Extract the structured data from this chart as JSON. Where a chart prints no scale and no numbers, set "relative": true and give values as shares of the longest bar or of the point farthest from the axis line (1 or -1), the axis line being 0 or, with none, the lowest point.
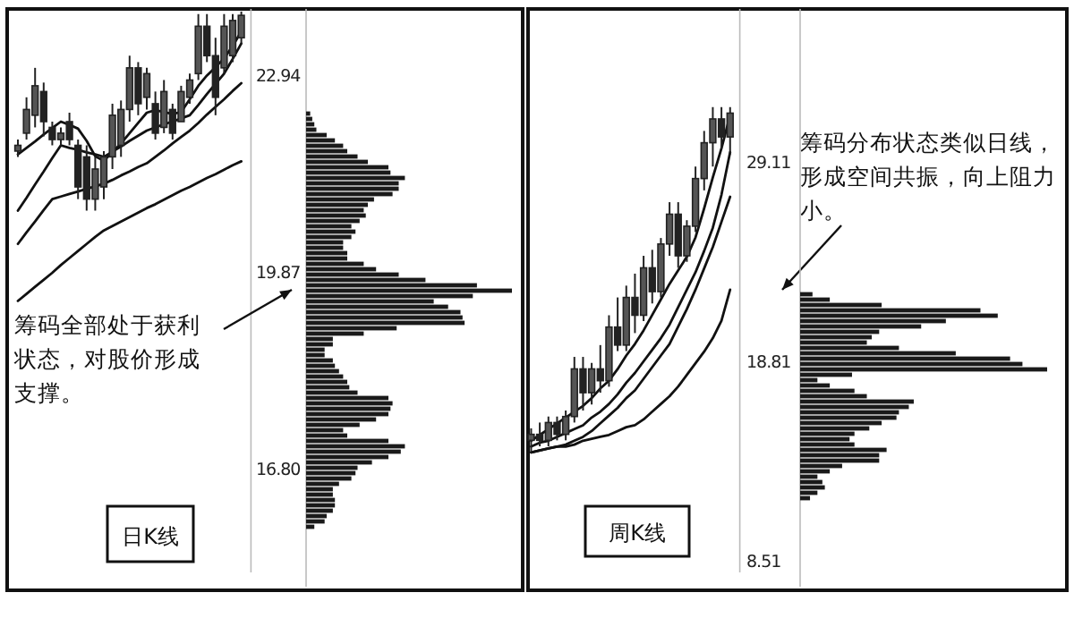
{
  "chart_data": [
    {
      "type": "candlestick",
      "categories": [
        null,
        null,
        null,
        null,
        null,
        null,
        null,
        null,
        null,
        null,
        null,
        null,
        null,
        null,
        null,
        null,
        null,
        null,
        null,
        null,
        null,
        null,
        null,
        null,
        null,
        null,
        null
      ],
      "ohlc": [
        [
          21.78,
          21.96,
          21.69,
          21.87
        ],
        [
          22.06,
          22.62,
          21.96,
          22.43
        ],
        [
          22.34,
          23.08,
          22.15,
          22.8
        ],
        [
          22.71,
          22.85,
          22.01,
          22.24
        ],
        [
          22.15,
          22.24,
          21.87,
          21.96
        ],
        [
          21.96,
          22.15,
          21.87,
          22.06
        ],
        [
          22.24,
          22.38,
          21.87,
          21.96
        ],
        [
          21.87,
          21.96,
          21.03,
          21.22
        ],
        [
          21.69,
          21.87,
          20.85,
          21.03
        ],
        [
          21.03,
          21.69,
          20.85,
          21.5
        ],
        [
          21.22,
          21.78,
          21.03,
          21.69
        ],
        [
          21.69,
          22.52,
          21.5,
          22.34
        ],
        [
          21.87,
          22.57,
          21.69,
          22.43
        ],
        [
          22.43,
          23.27,
          22.24,
          23.08
        ],
        [
          23.08,
          23.17,
          22.34,
          22.52
        ],
        [
          22.62,
          23.08,
          22.43,
          22.99
        ],
        [
          22.52,
          22.71,
          21.96,
          22.06
        ],
        [
          22.15,
          22.89,
          22.06,
          22.71
        ],
        [
          22.43,
          22.52,
          21.96,
          22.06
        ],
        [
          22.24,
          22.8,
          22.24,
          22.71
        ],
        [
          22.62,
          22.99,
          22.52,
          22.89
        ],
        [
          22.99,
          23.92,
          22.89,
          23.73
        ],
        [
          23.73,
          23.92,
          23.17,
          23.27
        ],
        [
          23.27,
          23.55,
          22.34,
          22.62
        ],
        [
          23.08,
          23.92,
          22.99,
          23.73
        ],
        [
          23.27,
          23.92,
          23.17,
          23.82
        ],
        [
          23.55,
          23.96,
          23.45,
          23.9
        ]
      ],
      "series": [
        {
          "type": "line",
          "color": "#111111",
          "values": [
            21.73,
            21.83,
            21.93,
            22.04,
            22.14,
            22.24,
            22.19,
            22.13,
            21.94,
            21.7,
            21.63,
            21.76,
            21.9,
            22.06,
            22.22,
            22.38,
            22.42,
            22.39,
            22.36,
            22.39,
            22.59,
            22.8,
            22.96,
            23.09,
            23.23,
            23.42,
            23.65
          ]
        },
        {
          "type": "line",
          "color": "#111111",
          "values": [
            20.85,
            21.05,
            21.26,
            21.46,
            21.67,
            21.87,
            21.83,
            21.8,
            21.76,
            21.73,
            21.69,
            21.77,
            21.85,
            21.94,
            22.02,
            22.1,
            22.15,
            22.2,
            22.24,
            22.29,
            22.34,
            22.5,
            22.67,
            22.83,
            22.99,
            23.22,
            23.46
          ]
        },
        {
          "type": "line",
          "color": "#111111",
          "values": [
            20.33,
            20.51,
            20.68,
            20.86,
            21.03,
            21.07,
            21.11,
            21.15,
            21.19,
            21.23,
            21.27,
            21.33,
            21.4,
            21.46,
            21.53,
            21.59,
            21.69,
            21.79,
            21.9,
            22.0,
            22.1,
            22.22,
            22.35,
            22.47,
            22.59,
            22.72,
            22.84
          ]
        },
        {
          "type": "line",
          "color": "#111111",
          "values": [
            19.44,
            19.55,
            19.66,
            19.77,
            19.88,
            20.0,
            20.11,
            20.22,
            20.33,
            20.44,
            20.54,
            20.61,
            20.68,
            20.75,
            20.82,
            20.89,
            20.95,
            21.02,
            21.09,
            21.16,
            21.22,
            21.29,
            21.36,
            21.42,
            21.49,
            21.56,
            21.62
          ]
        }
      ],
      "ylim": [
        15.2,
        24.0
      ],
      "yticks": [
        22.94,
        19.87,
        {
          "value": 16.8,
          "label": "16.80"
        }
      ],
      "tick_labels": "y",
      "annotations": [
        "筹码全部处于获利状态，对股价形成支撑。",
        "日K线"
      ]
    },
    {
      "type": "bar",
      "orientation": "horizontal",
      "relative": true,
      "tick_labels": false,
      "color": "#1a1a1a",
      "categories": [
        null,
        null,
        null,
        null,
        null,
        null,
        null,
        null,
        null,
        null,
        null,
        null,
        null,
        null,
        null,
        null,
        null,
        null,
        null,
        null,
        null,
        null,
        null,
        null,
        null,
        null,
        null,
        null,
        null,
        null,
        null,
        null,
        null,
        null,
        null,
        null,
        null,
        null,
        null,
        null,
        null,
        null,
        null,
        null,
        null,
        null,
        null,
        null,
        null,
        null,
        null,
        null,
        null,
        null,
        null,
        null,
        null,
        null,
        null,
        null,
        null,
        null,
        null,
        null,
        null,
        null,
        null,
        null,
        null,
        null,
        null,
        null,
        null,
        null,
        null,
        null,
        null,
        null
      ],
      "values": [
        0.02,
        0.03,
        0.04,
        0.05,
        0.1,
        0.14,
        0.18,
        0.2,
        0.25,
        0.3,
        0.4,
        0.41,
        0.48,
        0.45,
        0.45,
        0.42,
        0.33,
        0.3,
        0.28,
        0.29,
        0.26,
        0.22,
        0.24,
        0.22,
        0.18,
        0.18,
        0.2,
        0.2,
        0.28,
        0.34,
        0.45,
        0.58,
        0.83,
        1,
        0.81,
        0.62,
        0.69,
        0.75,
        0.76,
        0.77,
        0.44,
        0.28,
        0.13,
        0.13,
        0.09,
        0.09,
        0.13,
        0.14,
        0.16,
        0.18,
        0.2,
        0.21,
        0.25,
        0.4,
        0.42,
        0.41,
        0.4,
        0.34,
        0.26,
        0.18,
        0.2,
        0.4,
        0.48,
        0.46,
        0.4,
        0.32,
        0.25,
        0.24,
        0.22,
        0.16,
        0.13,
        0.13,
        0.14,
        0.14,
        0.13,
        0.1,
        0.09,
        0.04
      ]
    },
    {
      "type": "candlestick",
      "categories": [
        null,
        null,
        null,
        null,
        null,
        null,
        null,
        null,
        null,
        null,
        null,
        null,
        null,
        null,
        null,
        null,
        null,
        null,
        null,
        null,
        null,
        null,
        null,
        null
      ],
      "ohlc": [
        [
          14.82,
          15.44,
          14.21,
          15.13
        ],
        [
          15.13,
          15.74,
          14.51,
          14.82
        ],
        [
          14.82,
          16.05,
          14.51,
          15.74
        ],
        [
          15.74,
          16.05,
          14.82,
          15.13
        ],
        [
          15.13,
          16.36,
          14.82,
          16.05
        ],
        [
          16.05,
          19.13,
          15.74,
          18.51
        ],
        [
          18.51,
          19.13,
          16.36,
          17.28
        ],
        [
          17.28,
          18.82,
          16.67,
          18.51
        ],
        [
          18.51,
          19.74,
          17.28,
          17.9
        ],
        [
          17.9,
          21.28,
          17.59,
          20.67
        ],
        [
          20.67,
          22.2,
          19.43,
          19.74
        ],
        [
          19.74,
          22.81,
          19.43,
          22.2
        ],
        [
          22.2,
          23.43,
          20.36,
          21.28
        ],
        [
          21.28,
          24.35,
          20.98,
          23.73
        ],
        [
          23.73,
          24.66,
          21.89,
          22.5
        ],
        [
          22.5,
          25.27,
          22.2,
          24.96
        ],
        [
          24.96,
          27.12,
          24.35,
          26.5
        ],
        [
          26.5,
          27.12,
          23.73,
          24.35
        ],
        [
          24.35,
          26.19,
          24.04,
          25.88
        ],
        [
          25.88,
          28.96,
          25.58,
          28.34
        ],
        [
          28.34,
          30.8,
          27.73,
          30.19
        ],
        [
          30.19,
          32.03,
          28.96,
          31.42
        ],
        [
          31.42,
          32.03,
          29.88,
          30.49
        ],
        [
          30.49,
          32.03,
          29.58,
          31.72
        ]
      ],
      "series": [
        {
          "type": "line",
          "color": "#111111",
          "values": [
            14.8,
            15.1,
            15.4,
            15.7,
            16.0,
            16.3,
            16.6,
            17.0,
            17.5,
            17.9,
            18.5,
            19.2,
            19.8,
            20.5,
            21.3,
            22.1,
            22.9,
            23.6,
            24.3,
            25.3,
            26.8,
            28.4,
            29.9,
            31.6
          ]
        },
        {
          "type": "line",
          "color": "#111111",
          "values": [
            14.5,
            14.7,
            14.8,
            15.0,
            15.2,
            15.4,
            15.6,
            16.0,
            16.3,
            16.7,
            17.2,
            17.8,
            18.3,
            18.9,
            19.5,
            20.1,
            20.8,
            21.7,
            22.6,
            23.5,
            24.6,
            25.8,
            27.5,
            29.7
          ]
        },
        {
          "type": "line",
          "color": "#111111",
          "values": [
            14.2,
            14.3,
            14.4,
            14.5,
            14.6,
            14.8,
            15.0,
            15.3,
            15.7,
            16.1,
            16.5,
            17.0,
            17.4,
            18.0,
            18.6,
            19.2,
            19.8,
            20.7,
            21.6,
            22.6,
            23.7,
            24.8,
            26.1,
            27.4
          ]
        },
        {
          "type": "line",
          "color": "#111111",
          "values": [
            14.2,
            14.3,
            14.4,
            14.5,
            14.5,
            14.6,
            14.8,
            14.9,
            15.0,
            15.1,
            15.3,
            15.5,
            15.6,
            15.9,
            16.3,
            16.7,
            17.1,
            17.6,
            18.2,
            18.8,
            19.4,
            20.1,
            21.0,
            22.6
          ]
        }
      ],
      "ylim": [
        8.0,
        37.1
      ],
      "yticks": [
        29.11,
        18.81,
        8.51
      ],
      "tick_labels": "y",
      "annotations": [
        "筹码分布状态类似日线，形成空间共振，向上阻力小。",
        "周K线"
      ]
    },
    {
      "type": "bar",
      "orientation": "horizontal",
      "relative": true,
      "tick_labels": false,
      "color": "#1a1a1a",
      "categories": [
        null,
        null,
        null,
        null,
        null,
        null,
        null,
        null,
        null,
        null,
        null,
        null,
        null,
        null,
        null,
        null,
        null,
        null,
        null,
        null,
        null,
        null,
        null,
        null,
        null,
        null,
        null,
        null,
        null,
        null,
        null,
        null,
        null,
        null,
        null,
        null,
        null,
        null,
        null
      ],
      "values": [
        0.05,
        0.12,
        0.33,
        0.73,
        0.8,
        0.59,
        0.49,
        0.32,
        0.29,
        0.27,
        0.4,
        0.63,
        0.85,
        0.9,
        1,
        0.21,
        0.07,
        0.12,
        0.22,
        0.27,
        0.46,
        0.44,
        0.4,
        0.39,
        0.33,
        0.28,
        0.22,
        0.2,
        0.22,
        0.35,
        0.32,
        0.32,
        0.17,
        0.12,
        0.07,
        0.09,
        0.1,
        0.07,
        0.04
      ]
    }
  ]
}
